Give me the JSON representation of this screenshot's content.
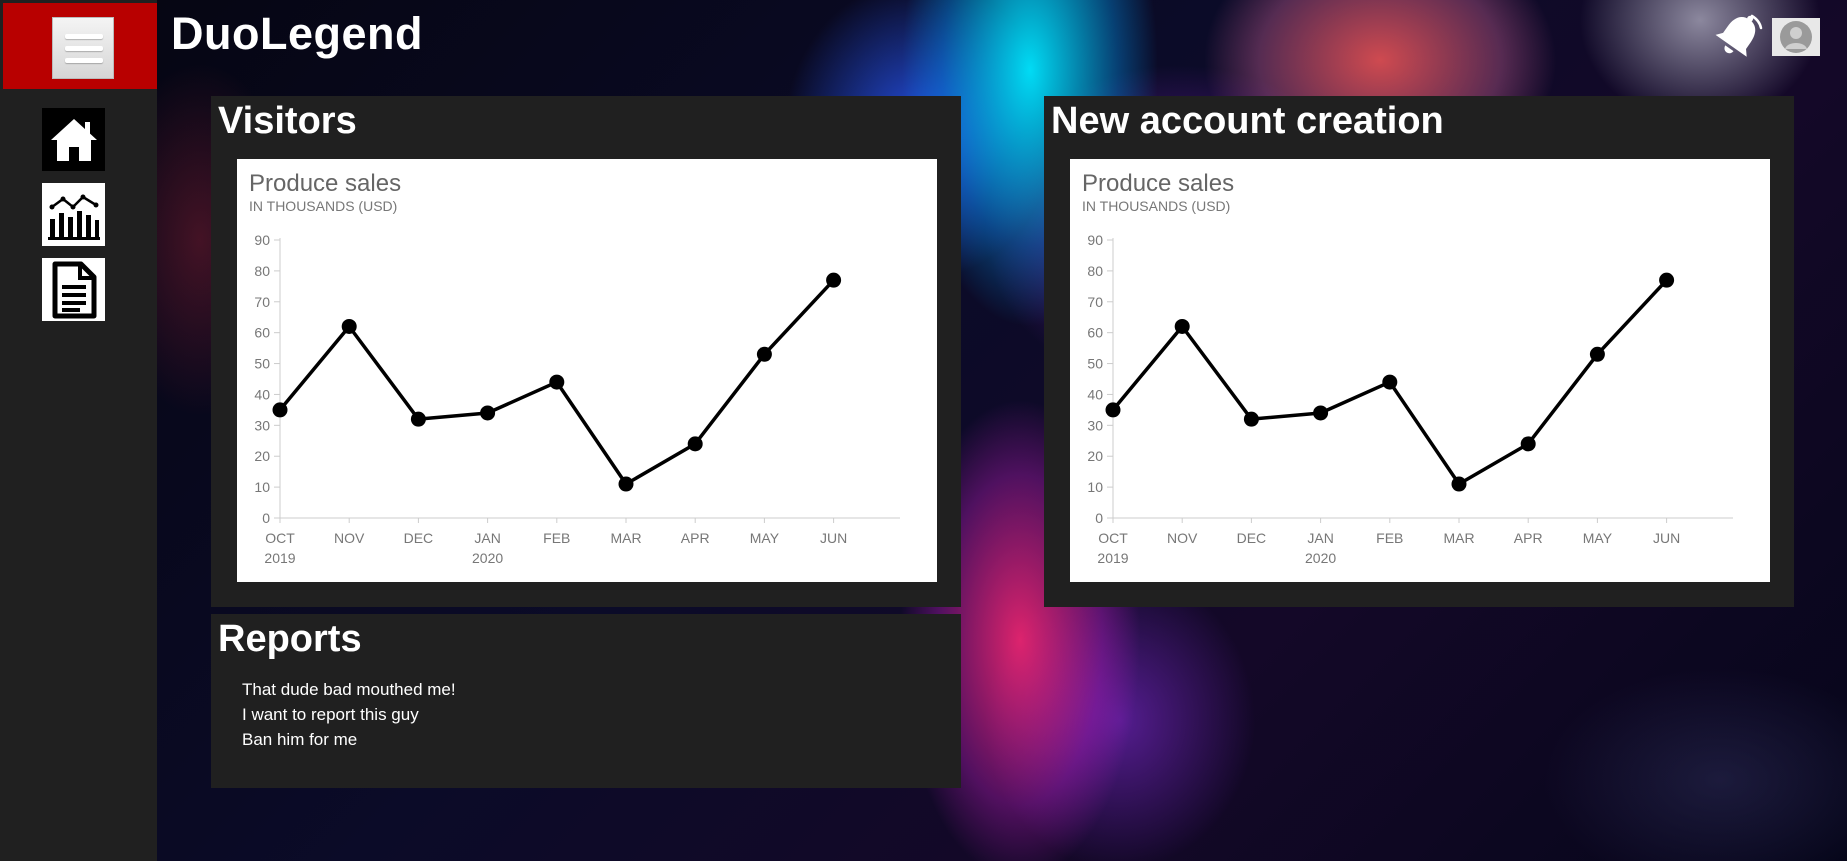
{
  "app": {
    "title": "DuoLegend"
  },
  "sidebar": {
    "menu_icon": "hamburger-menu-icon",
    "items": [
      {
        "icon": "home-icon"
      },
      {
        "icon": "bar-chart-icon"
      },
      {
        "icon": "document-icon"
      }
    ]
  },
  "header": {
    "notification_icon": "bell-icon",
    "avatar_icon": "user-avatar-icon"
  },
  "panels": {
    "visitors": {
      "title": "Visitors"
    },
    "new_accounts": {
      "title": "New account creation"
    },
    "reports": {
      "title": "Reports",
      "items": [
        "That dude bad mouthed me!",
        "I want to report this guy",
        "Ban him for me"
      ]
    }
  },
  "chart_data": [
    {
      "type": "line",
      "title": "Produce sales",
      "subtitle": "IN THOUSANDS (USD)",
      "categories": [
        "OCT",
        "NOV",
        "DEC",
        "JAN",
        "FEB",
        "MAR",
        "APR",
        "MAY",
        "JUN"
      ],
      "category_sublabels": [
        "2019",
        "",
        "",
        "2020",
        "",
        "",
        "",
        "",
        ""
      ],
      "values": [
        35,
        62,
        32,
        34,
        44,
        11,
        24,
        53,
        77
      ],
      "yticks": [
        0,
        10,
        20,
        30,
        40,
        50,
        60,
        70,
        80,
        90
      ],
      "ylim": [
        0,
        90
      ],
      "grid": false,
      "color": "#000000"
    },
    {
      "type": "line",
      "title": "Produce sales",
      "subtitle": "IN THOUSANDS (USD)",
      "categories": [
        "OCT",
        "NOV",
        "DEC",
        "JAN",
        "FEB",
        "MAR",
        "APR",
        "MAY",
        "JUN"
      ],
      "category_sublabels": [
        "2019",
        "",
        "",
        "2020",
        "",
        "",
        "",
        "",
        ""
      ],
      "values": [
        35,
        62,
        32,
        34,
        44,
        11,
        24,
        53,
        77
      ],
      "yticks": [
        0,
        10,
        20,
        30,
        40,
        50,
        60,
        70,
        80,
        90
      ],
      "ylim": [
        0,
        90
      ],
      "grid": false,
      "color": "#000000"
    }
  ]
}
